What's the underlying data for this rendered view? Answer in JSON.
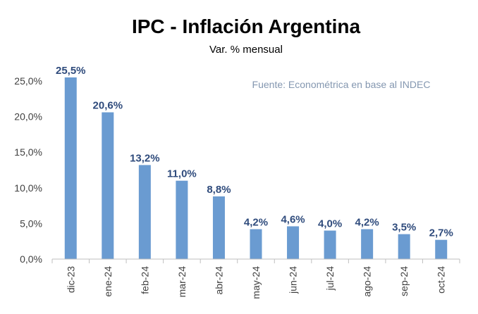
{
  "chart_data": {
    "type": "bar",
    "title": "IPC - Inflación Argentina",
    "subtitle": "Var. % mensual",
    "annotation": "Fuente: Econométrica en base al INDEC",
    "categories": [
      "dic-23",
      "ene-24",
      "feb-24",
      "mar-24",
      "abr-24",
      "may-24",
      "jun-24",
      "jul-24",
      "ago-24",
      "sep-24",
      "oct-24"
    ],
    "values": [
      25.5,
      20.6,
      13.2,
      11.0,
      8.8,
      4.2,
      4.6,
      4.0,
      4.2,
      3.5,
      2.7
    ],
    "data_labels": [
      "25,5%",
      "20,6%",
      "13,2%",
      "11,0%",
      "8,8%",
      "4,2%",
      "4,6%",
      "4,0%",
      "4,2%",
      "3,5%",
      "2,7%"
    ],
    "yticks": [
      0,
      5,
      10,
      15,
      20,
      25
    ],
    "ytick_labels": [
      "0,0%",
      "5,0%",
      "10,0%",
      "15,0%",
      "20,0%",
      "25,0%"
    ],
    "ylim": [
      0,
      27.5
    ],
    "xlabel": "",
    "ylabel": "",
    "grid": false,
    "legend": "none",
    "colors": {
      "bar": "#6a9bd1",
      "data_label": "#2f4b7c",
      "annotation": "#8497b0",
      "axis": "#bfbfbf"
    }
  }
}
